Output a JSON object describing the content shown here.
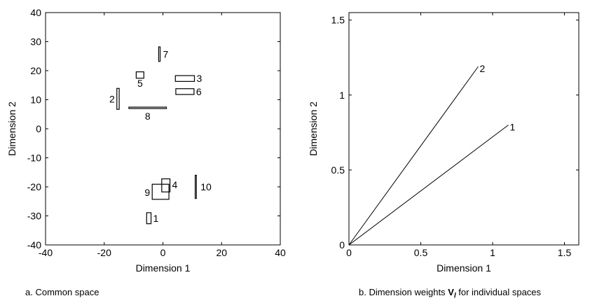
{
  "chart_data": [
    {
      "type": "scatter",
      "title": "",
      "caption": "a. Common space",
      "xlabel": "Dimension 1",
      "ylabel": "Dimension 2",
      "xlim": [
        -40,
        40
      ],
      "ylim": [
        -40,
        40
      ],
      "xticks": [
        -40,
        -20,
        0,
        20,
        40
      ],
      "yticks": [
        -40,
        -30,
        -20,
        -10,
        0,
        10,
        20,
        30,
        40
      ],
      "grid": false,
      "marker": "rectangle (width and height proportional to individual dimension weights)",
      "points": [
        {
          "label": "1",
          "x": -4.8,
          "y": -30.8,
          "w": 1.5,
          "h": 3.8
        },
        {
          "label": "2",
          "x": -15.3,
          "y": 10.3,
          "w": 0.8,
          "h": 7.2
        },
        {
          "label": "3",
          "x": 7.5,
          "y": 17.3,
          "w": 6.5,
          "h": 2.0
        },
        {
          "label": "4",
          "x": 1.0,
          "y": -19.5,
          "w": 2.8,
          "h": 4.5
        },
        {
          "label": "5",
          "x": -7.8,
          "y": 18.5,
          "w": 2.6,
          "h": 2.2
        },
        {
          "label": "6",
          "x": 7.5,
          "y": 12.8,
          "w": 6.2,
          "h": 2.0
        },
        {
          "label": "7",
          "x": -1.2,
          "y": 25.7,
          "w": 0.5,
          "h": 5.0
        },
        {
          "label": "8",
          "x": -5.2,
          "y": 7.2,
          "w": 12.8,
          "h": 0.5
        },
        {
          "label": "9",
          "x": -0.8,
          "y": -21.7,
          "w": 5.7,
          "h": 5.2
        },
        {
          "label": "10",
          "x": 11.2,
          "y": -20.0,
          "w": 0.4,
          "h": 8.0
        }
      ]
    },
    {
      "type": "line",
      "title": "",
      "caption": "b. Dimension weights",
      "caption_symbol": "V",
      "caption_subscript": "l",
      "caption_tail": " for individual spaces",
      "xlabel": "Dimension 1",
      "ylabel": "Dimension 2",
      "xlim": [
        0,
        1.6
      ],
      "ylim": [
        0,
        1.55
      ],
      "xticks": [
        0,
        0.5,
        1,
        1.5
      ],
      "yticks": [
        0,
        0.5,
        1,
        1.5
      ],
      "grid": false,
      "vectors": [
        {
          "label": "1",
          "x": [
            0,
            1.11
          ],
          "y": [
            0,
            0.8
          ]
        },
        {
          "label": "2",
          "x": [
            0,
            0.9
          ],
          "y": [
            0,
            1.19
          ]
        }
      ]
    }
  ]
}
